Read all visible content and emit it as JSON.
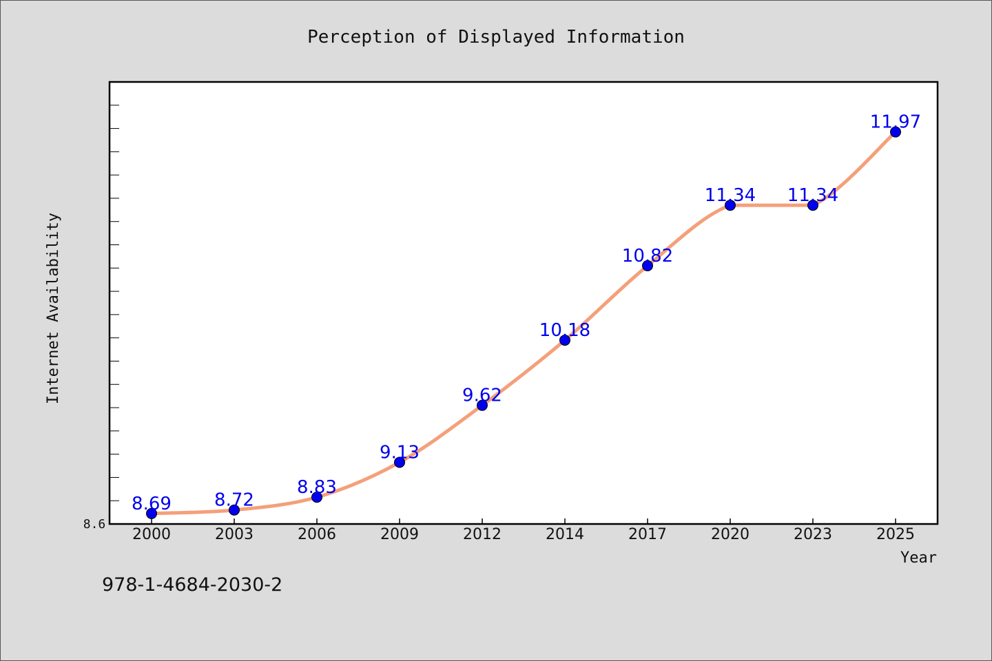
{
  "chart_data": {
    "type": "line",
    "title": "Perception of Displayed Information",
    "xlabel": "Year",
    "ylabel": "Internet Availability",
    "categories": [
      "2000",
      "2003",
      "2006",
      "2009",
      "2012",
      "2014",
      "2017",
      "2020",
      "2023",
      "2025"
    ],
    "series": [
      {
        "values": [
          8.69,
          8.72,
          8.83,
          9.13,
          9.62,
          10.18,
          10.82,
          11.34,
          11.34,
          11.97
        ],
        "data_labels": [
          "8.69",
          "8.72",
          "8.83",
          "9.13",
          "9.62",
          "10.18",
          "10.82",
          "11.34",
          "11.34",
          "11.97"
        ],
        "line_color": "#f4a07a",
        "marker_color": "#0000ee",
        "label_color": "#0000ee"
      }
    ],
    "y_tick_label": "8.6",
    "ylim": [
      8.6,
      12.4
    ],
    "y_minor_tick_step": 0.2,
    "grid": false,
    "legend": "none"
  },
  "footer": {
    "isbn": "978-1-4684-2030-2"
  },
  "colors": {
    "background": "#dcdcdc",
    "plot_background": "#ffffff",
    "axis": "#000000",
    "text": "#111111"
  }
}
